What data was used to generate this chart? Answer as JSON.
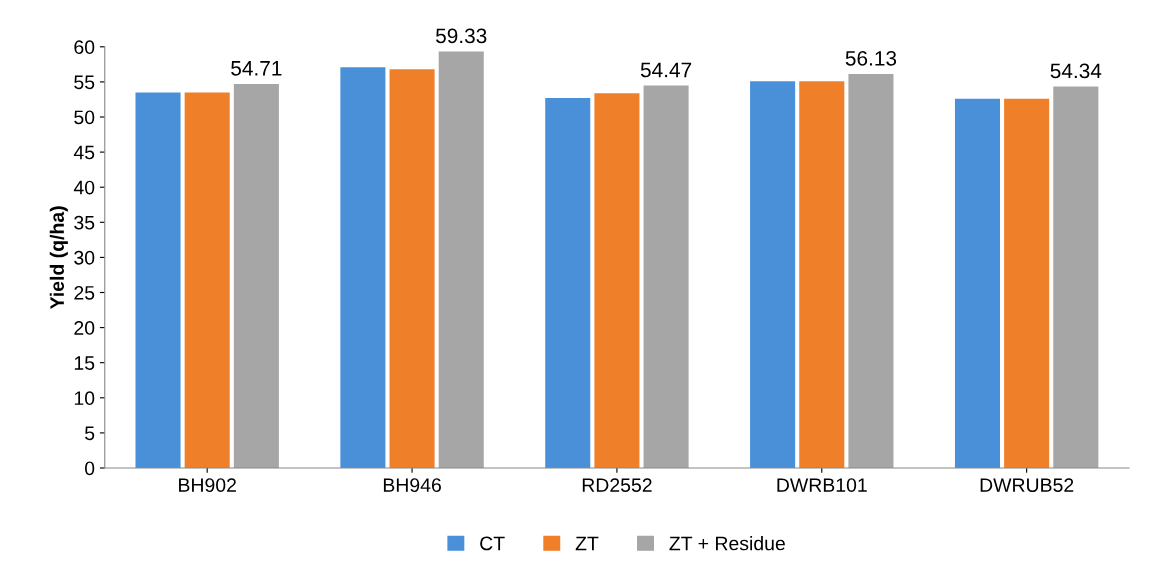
{
  "chart_data": {
    "type": "bar",
    "ylabel": "Yield (q/ha)",
    "categories": [
      "BH902",
      "BH946",
      "RD2552",
      "DWRB101",
      "DWRUB52"
    ],
    "series": [
      {
        "name": "CT",
        "color": "#4a90d9",
        "values": [
          53.5,
          57.1,
          52.7,
          55.1,
          52.6
        ]
      },
      {
        "name": "ZT",
        "color": "#f07f2a",
        "values": [
          53.5,
          56.8,
          53.4,
          55.1,
          52.6
        ]
      },
      {
        "name": "ZT + Residue",
        "color": "#a6a6a6",
        "values": [
          54.71,
          59.33,
          54.47,
          56.13,
          54.34
        ],
        "value_labels": [
          "54.71",
          "59.33",
          "54.47",
          "56.13",
          "54.34"
        ]
      }
    ],
    "ylim": [
      0,
      60
    ],
    "yticks": [
      0,
      5,
      10,
      15,
      20,
      25,
      30,
      35,
      40,
      45,
      50,
      55,
      60
    ],
    "grid": false,
    "legend": "bottom"
  }
}
